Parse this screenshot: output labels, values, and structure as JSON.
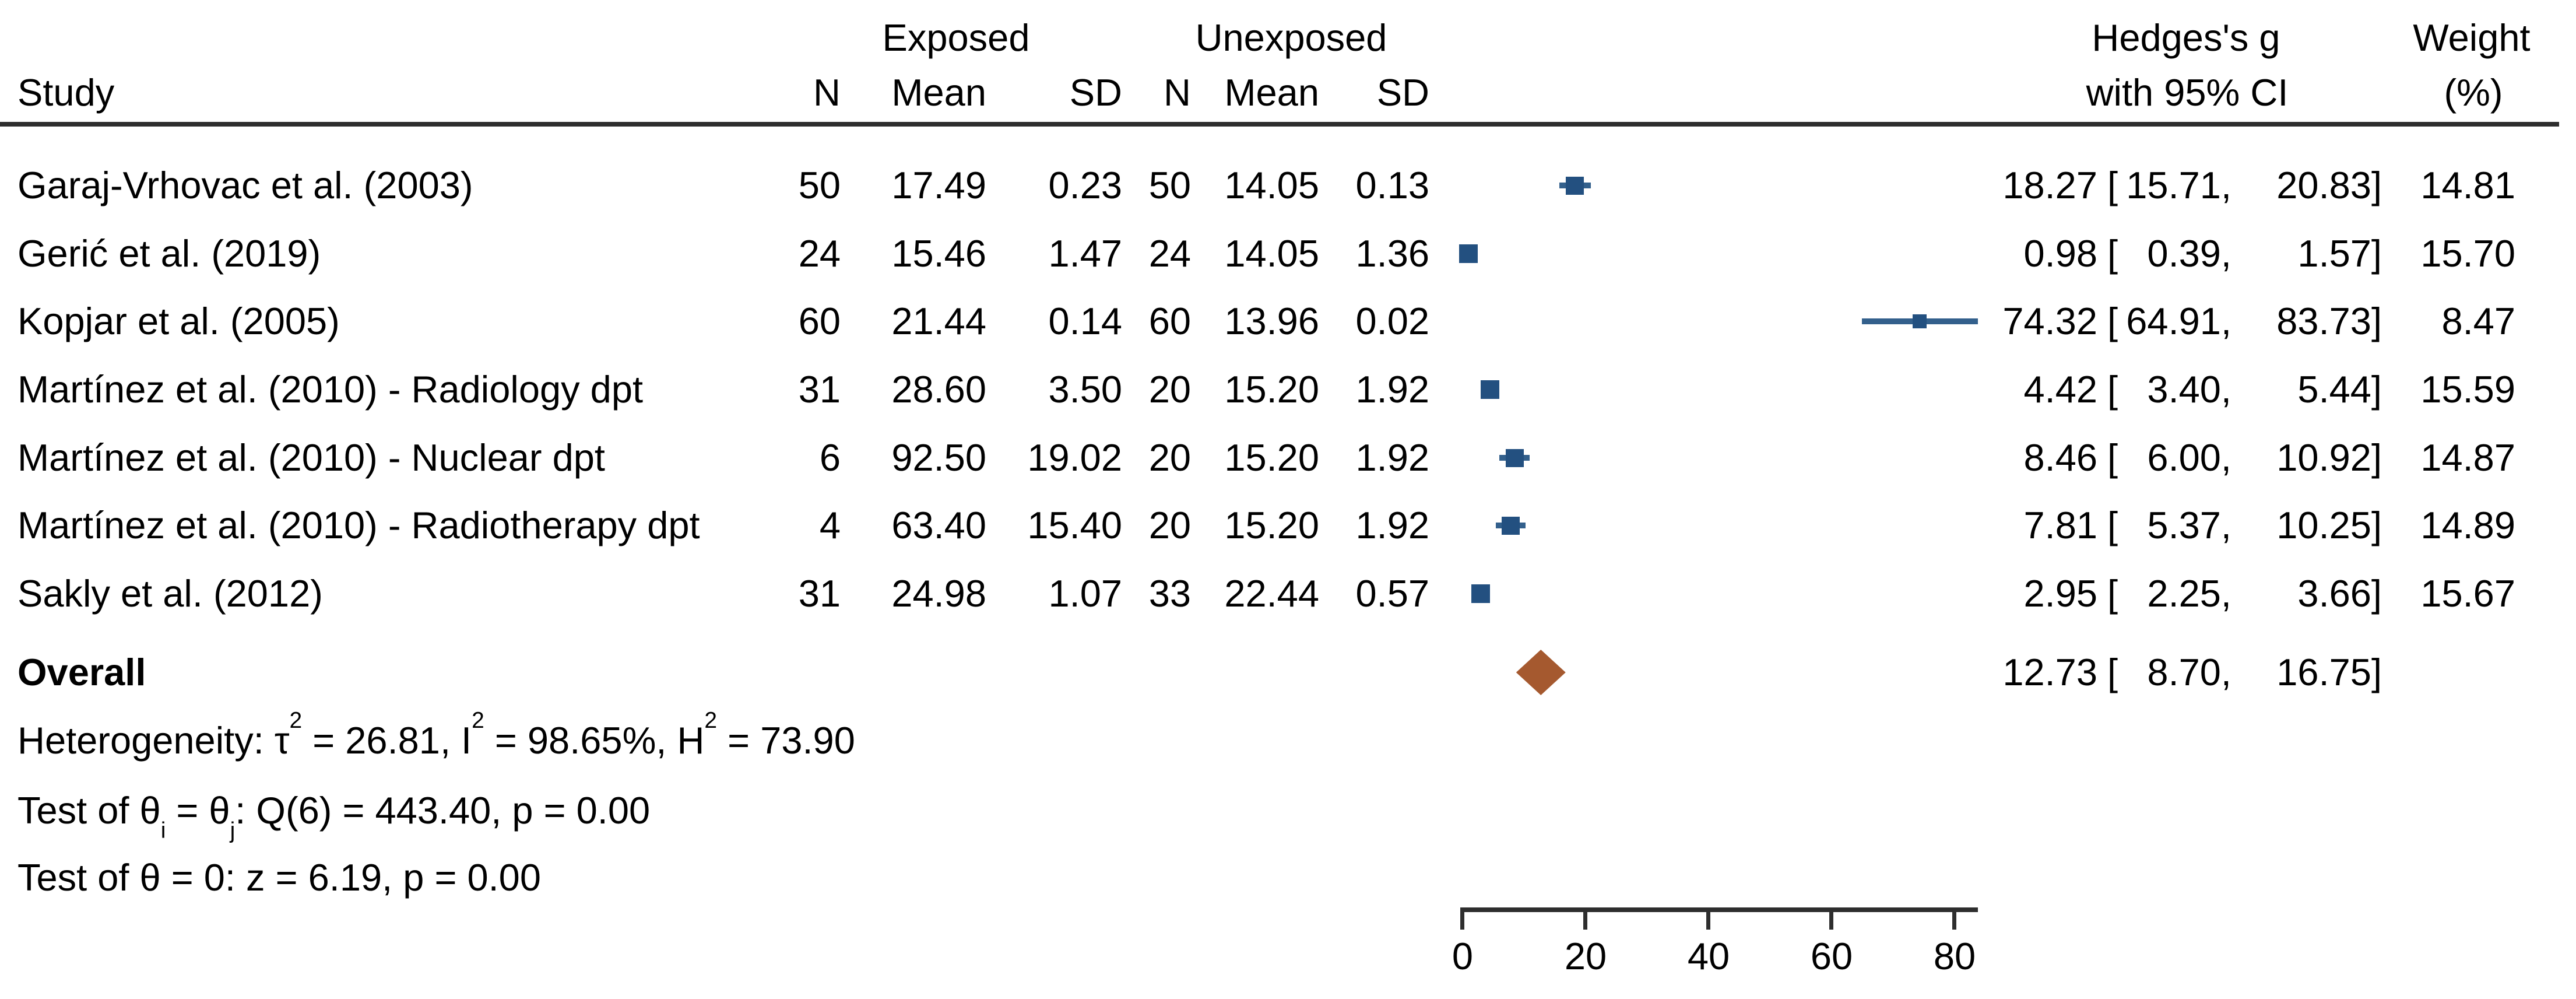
{
  "colors": {
    "marker_square": "#235080",
    "ci_line": "#33608C",
    "overall_diamond": "#A5592F",
    "rule": "#2e2e2e",
    "text": "#000000",
    "background": "#ffffff"
  },
  "header": {
    "exposed_group": "Exposed",
    "unexposed_group": "Unexposed",
    "study": "Study",
    "n1": "N",
    "mean1": "Mean",
    "sd1": "SD",
    "n2": "N",
    "mean2": "Mean",
    "sd2": "SD",
    "effect_line1": "Hedges's g",
    "effect_line2": "with 95% CI",
    "weight_line1": "Weight",
    "weight_line2": "(%)"
  },
  "rows": [
    {
      "study": "Garaj-Vrhovac et al. (2003)",
      "n1": "50",
      "mean1": "17.49",
      "sd1": "0.23",
      "n2": "50",
      "mean2": "14.05",
      "sd2": "0.13",
      "est": "18.27",
      "bracket": "[",
      "ci_lo": "15.71,",
      "ci_hi": "20.83]",
      "weight": "14.81"
    },
    {
      "study": "Gerić et al. (2019)",
      "n1": "24",
      "mean1": "15.46",
      "sd1": "1.47",
      "n2": "24",
      "mean2": "14.05",
      "sd2": "1.36",
      "est": "0.98",
      "bracket": "[",
      "ci_lo": "0.39,",
      "ci_hi": "1.57]",
      "weight": "15.70"
    },
    {
      "study": "Kopjar et al. (2005)",
      "n1": "60",
      "mean1": "21.44",
      "sd1": "0.14",
      "n2": "60",
      "mean2": "13.96",
      "sd2": "0.02",
      "est": "74.32",
      "bracket": "[",
      "ci_lo": "64.91,",
      "ci_hi": "83.73]",
      "weight": "8.47"
    },
    {
      "study": "Martínez et al. (2010) - Radiology dpt",
      "n1": "31",
      "mean1": "28.60",
      "sd1": "3.50",
      "n2": "20",
      "mean2": "15.20",
      "sd2": "1.92",
      "est": "4.42",
      "bracket": "[",
      "ci_lo": "3.40,",
      "ci_hi": "5.44]",
      "weight": "15.59"
    },
    {
      "study": "Martínez et al. (2010) - Nuclear dpt",
      "n1": "6",
      "mean1": "92.50",
      "sd1": "19.02",
      "n2": "20",
      "mean2": "15.20",
      "sd2": "1.92",
      "est": "8.46",
      "bracket": "[",
      "ci_lo": "6.00,",
      "ci_hi": "10.92]",
      "weight": "14.87"
    },
    {
      "study": "Martínez et al. (2010) - Radiotherapy dpt",
      "n1": "4",
      "mean1": "63.40",
      "sd1": "15.40",
      "n2": "20",
      "mean2": "15.20",
      "sd2": "1.92",
      "est": "7.81",
      "bracket": "[",
      "ci_lo": "5.37,",
      "ci_hi": "10.25]",
      "weight": "14.89"
    },
    {
      "study": "Sakly et al. (2012)",
      "n1": "31",
      "mean1": "24.98",
      "sd1": "1.07",
      "n2": "33",
      "mean2": "22.44",
      "sd2": "0.57",
      "est": "2.95",
      "bracket": "[",
      "ci_lo": "2.25,",
      "ci_hi": "3.66]",
      "weight": "15.67"
    }
  ],
  "overall": {
    "label": "Overall",
    "est": "12.73",
    "bracket": "[",
    "ci_lo": "8.70,",
    "ci_hi": "16.75]"
  },
  "notes": {
    "heterogeneity": {
      "p1": "Heterogeneity: τ",
      "sup1": "2",
      "p2": " = 26.81, I",
      "sup2": "2",
      "p3": " = 98.65%, H",
      "sup3": "2",
      "p4": " = 73.90"
    },
    "test_thetas": {
      "p1": "Test of θ",
      "sub1": "i",
      "p2": " = θ",
      "sub2": "j",
      "p3": ": Q(6) = 443.40, p = 0.00"
    },
    "test_zero": "Test of θ = 0: z = 6.19, p = 0.00"
  },
  "axis": {
    "ticks": [
      "0",
      "20",
      "40",
      "60",
      "80"
    ]
  },
  "chart_data": {
    "type": "forest",
    "effect_measure": "Hedges's g",
    "ci_level": "95%",
    "xlabel": "",
    "x_axis_ticks": [
      0,
      20,
      40,
      60,
      80
    ],
    "x_axis_range": [
      0,
      83.7
    ],
    "studies": [
      {
        "label": "Garaj-Vrhovac et al. (2003)",
        "n_exposed": 50,
        "mean_exposed": 17.49,
        "sd_exposed": 0.23,
        "n_unexposed": 50,
        "mean_unexposed": 14.05,
        "sd_unexposed": 0.13,
        "effect": 18.27,
        "ci": [
          15.71,
          20.83
        ],
        "weight_pct": 14.81
      },
      {
        "label": "Gerić et al. (2019)",
        "n_exposed": 24,
        "mean_exposed": 15.46,
        "sd_exposed": 1.47,
        "n_unexposed": 24,
        "mean_unexposed": 14.05,
        "sd_unexposed": 1.36,
        "effect": 0.98,
        "ci": [
          0.39,
          1.57
        ],
        "weight_pct": 15.7
      },
      {
        "label": "Kopjar et al. (2005)",
        "n_exposed": 60,
        "mean_exposed": 21.44,
        "sd_exposed": 0.14,
        "n_unexposed": 60,
        "mean_unexposed": 13.96,
        "sd_unexposed": 0.02,
        "effect": 74.32,
        "ci": [
          64.91,
          83.73
        ],
        "weight_pct": 8.47
      },
      {
        "label": "Martínez et al. (2010) - Radiology dpt",
        "n_exposed": 31,
        "mean_exposed": 28.6,
        "sd_exposed": 3.5,
        "n_unexposed": 20,
        "mean_unexposed": 15.2,
        "sd_unexposed": 1.92,
        "effect": 4.42,
        "ci": [
          3.4,
          5.44
        ],
        "weight_pct": 15.59
      },
      {
        "label": "Martínez et al. (2010) - Nuclear dpt",
        "n_exposed": 6,
        "mean_exposed": 92.5,
        "sd_exposed": 19.02,
        "n_unexposed": 20,
        "mean_unexposed": 15.2,
        "sd_unexposed": 1.92,
        "effect": 8.46,
        "ci": [
          6.0,
          10.92
        ],
        "weight_pct": 14.87
      },
      {
        "label": "Martínez et al. (2010) - Radiotherapy dpt",
        "n_exposed": 4,
        "mean_exposed": 63.4,
        "sd_exposed": 15.4,
        "n_unexposed": 20,
        "mean_unexposed": 15.2,
        "sd_unexposed": 1.92,
        "effect": 7.81,
        "ci": [
          5.37,
          10.25
        ],
        "weight_pct": 14.89
      },
      {
        "label": "Sakly et al. (2012)",
        "n_exposed": 31,
        "mean_exposed": 24.98,
        "sd_exposed": 1.07,
        "n_unexposed": 33,
        "mean_unexposed": 22.44,
        "sd_unexposed": 0.57,
        "effect": 2.95,
        "ci": [
          2.25,
          3.66
        ],
        "weight_pct": 15.67
      }
    ],
    "overall": {
      "effect": 12.73,
      "ci": [
        8.7,
        16.75
      ]
    },
    "heterogeneity": {
      "tau2": 26.81,
      "I2_pct": 98.65,
      "H2": 73.9,
      "Q": 443.4,
      "Q_df": 6,
      "Q_p": 0.0,
      "z": 6.19,
      "z_p": 0.0
    }
  }
}
